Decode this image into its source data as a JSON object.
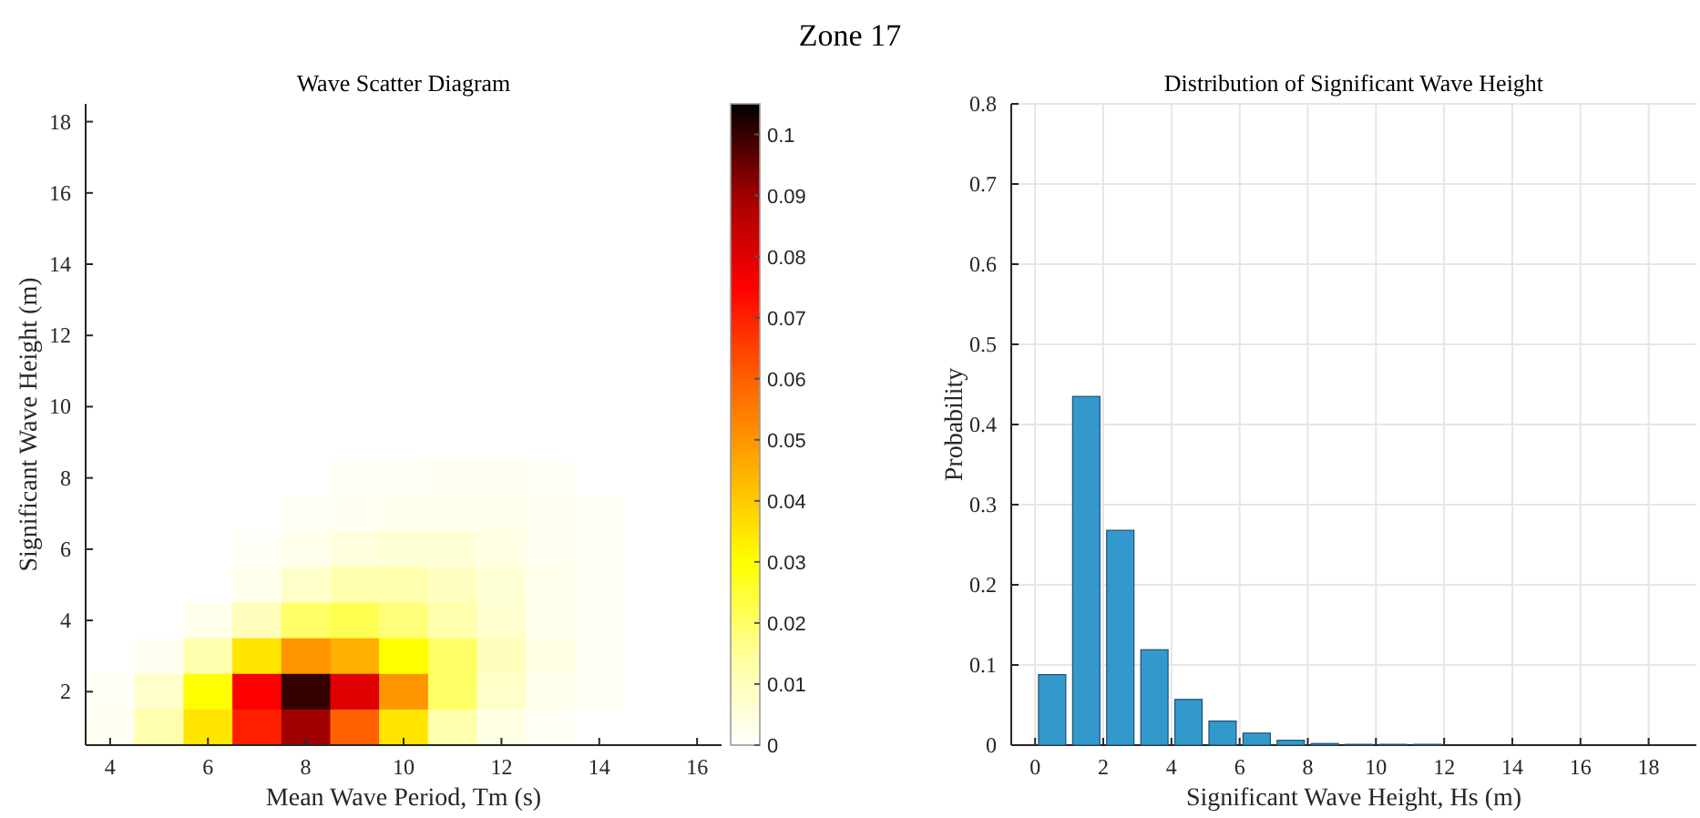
{
  "chart_data": [
    {
      "type": "heatmap",
      "title": "Wave Scatter Diagram",
      "xlabel": "Mean Wave Period, Tm (s)",
      "ylabel": "Significant Wave Height (m)",
      "annotations": [
        "Zone 17"
      ],
      "categories": [
        "4",
        null,
        "6",
        null,
        "8",
        null,
        "10",
        null,
        "12",
        null,
        "14",
        null,
        "16"
      ],
      "y_categories": [
        "18",
        null,
        "16",
        null,
        "14",
        null,
        "12",
        null,
        "10",
        null,
        "8",
        null,
        "6",
        null,
        "4",
        null,
        "2",
        null
      ],
      "cells": [
        [
          0,
          0,
          0,
          0,
          0,
          0,
          0,
          0,
          0,
          0,
          0,
          0,
          0
        ],
        [
          0,
          0,
          0,
          0,
          0,
          0,
          0,
          0,
          0,
          0,
          0,
          0,
          0
        ],
        [
          0,
          0,
          0,
          0,
          0,
          0,
          0,
          0,
          0,
          0,
          0,
          0,
          0
        ],
        [
          0,
          0,
          0,
          0,
          0,
          0,
          0,
          0,
          0,
          0,
          0,
          0,
          0
        ],
        [
          0,
          0,
          0,
          0,
          0,
          0,
          0,
          0,
          0,
          0,
          0,
          0,
          0
        ],
        [
          0,
          0,
          0,
          0,
          0,
          0,
          0,
          0,
          0,
          0,
          0,
          0,
          0
        ],
        [
          0,
          0,
          0,
          0,
          0,
          0,
          0,
          0,
          0,
          0,
          0,
          0,
          0
        ],
        [
          0,
          0,
          0,
          0,
          0,
          0,
          0,
          0,
          0,
          0,
          0,
          0,
          0
        ],
        [
          0,
          0,
          0,
          0,
          0,
          0,
          0,
          0,
          0,
          0,
          0,
          0,
          0
        ],
        [
          0,
          0,
          0,
          0,
          0,
          0,
          0,
          0,
          0,
          0,
          0,
          0,
          0
        ],
        [
          0,
          0,
          0,
          0,
          0,
          0.001,
          0.001,
          0.002,
          0.002,
          0.001,
          0,
          0,
          0
        ],
        [
          0,
          0,
          0,
          0,
          0.001,
          0.002,
          0.003,
          0.003,
          0.003,
          0.002,
          0.001,
          0,
          0
        ],
        [
          0,
          0,
          0,
          0.001,
          0.003,
          0.005,
          0.006,
          0.006,
          0.004,
          0.002,
          0.001,
          0,
          0
        ],
        [
          0,
          0,
          0,
          0.003,
          0.008,
          0.012,
          0.012,
          0.009,
          0.006,
          0.003,
          0.001,
          0,
          0
        ],
        [
          0,
          0,
          0.003,
          0.01,
          0.02,
          0.022,
          0.018,
          0.012,
          0.007,
          0.003,
          0.001,
          0,
          0
        ],
        [
          0,
          0.002,
          0.012,
          0.035,
          0.05,
          0.045,
          0.03,
          0.02,
          0.01,
          0.004,
          0.001,
          0,
          0
        ],
        [
          0.001,
          0.008,
          0.03,
          0.075,
          0.1,
          0.08,
          0.05,
          0.02,
          0.008,
          0.003,
          0.001,
          0,
          0
        ],
        [
          0.002,
          0.012,
          0.035,
          0.07,
          0.09,
          0.06,
          0.035,
          0.012,
          0.004,
          0.001,
          0,
          0,
          0
        ]
      ],
      "clim": [
        0,
        0.105
      ],
      "cticks": [
        0,
        0.01,
        0.02,
        0.03,
        0.04,
        0.05,
        0.06,
        0.07,
        0.08,
        0.09,
        0.1
      ]
    },
    {
      "type": "bar",
      "title": "Distribution of Significant Wave Height",
      "xlabel": "Significant Wave Height, Hs (m)",
      "ylabel": "Probability",
      "x": [
        0.5,
        1.5,
        2.5,
        3.5,
        4.5,
        5.5,
        6.5,
        7.5,
        8.5,
        9.5,
        10.5,
        11.5
      ],
      "values": [
        0.088,
        0.435,
        0.268,
        0.119,
        0.057,
        0.03,
        0.015,
        0.006,
        0.002,
        0.001,
        0.001,
        0.001
      ],
      "color": "#3399cc",
      "xlim": [
        -0.7,
        19.4
      ],
      "xticks": [
        0,
        2,
        4,
        6,
        8,
        10,
        12,
        14,
        16,
        18
      ],
      "ylim": [
        0,
        0.8
      ],
      "yticks": [
        0,
        0.1,
        0.2,
        0.3,
        0.4,
        0.5,
        0.6,
        0.7,
        0.8
      ],
      "grid": true
    }
  ]
}
